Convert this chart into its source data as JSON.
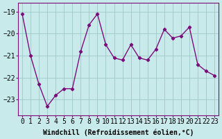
{
  "x": [
    0,
    1,
    2,
    3,
    4,
    5,
    6,
    7,
    8,
    9,
    10,
    11,
    12,
    13,
    14,
    15,
    16,
    17,
    18,
    19,
    20,
    21,
    22,
    23
  ],
  "y": [
    -19.1,
    -21.0,
    -22.3,
    -23.3,
    -22.8,
    -22.5,
    -22.5,
    -20.8,
    -19.6,
    -19.1,
    -20.5,
    -21.1,
    -21.2,
    -20.5,
    -21.1,
    -21.2,
    -20.7,
    -19.8,
    -20.2,
    -20.1,
    -19.7,
    -21.4,
    -21.7,
    -21.9
  ],
  "line_color": "#7b0d7b",
  "marker": "D",
  "marker_size": 2.2,
  "background_color": "#c8eaea",
  "grid_color": "#a0c8c8",
  "xlabel": "Windchill (Refroidissement éolien,°C)",
  "ylim": [
    -23.7,
    -18.6
  ],
  "xlim": [
    -0.5,
    23.5
  ],
  "yticks": [
    -23,
    -22,
    -21,
    -20,
    -19
  ],
  "xtick_labels": [
    "0",
    "1",
    "2",
    "3",
    "4",
    "5",
    "6",
    "7",
    "8",
    "9",
    "10",
    "11",
    "12",
    "13",
    "14",
    "15",
    "16",
    "17",
    "18",
    "19",
    "20",
    "21",
    "22",
    "23"
  ],
  "xlabel_fontsize": 7,
  "tick_fontsize": 7,
  "line_width": 1.0,
  "spine_color": "#7b0d7b"
}
